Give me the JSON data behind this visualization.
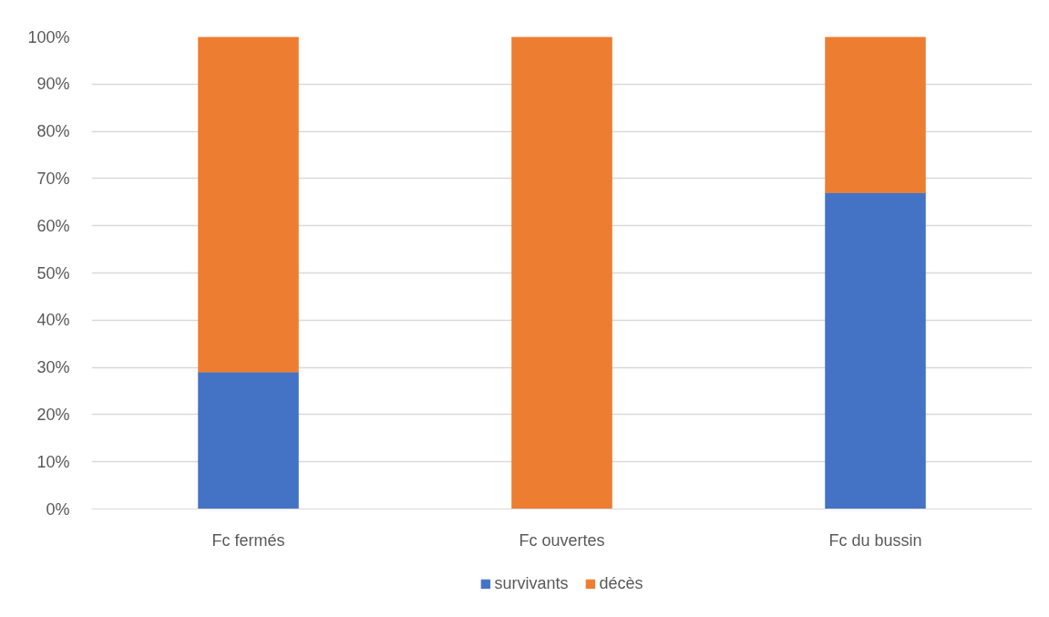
{
  "chart_data": {
    "type": "bar",
    "stacked": true,
    "categories": [
      "Fc fermés",
      "Fc ouvertes",
      "Fc du bussin"
    ],
    "series": [
      {
        "name": "survivants",
        "color": "#4472c4",
        "values": [
          29,
          0,
          67
        ]
      },
      {
        "name": "décès",
        "color": "#ed7d31",
        "values": [
          71,
          100,
          33
        ]
      }
    ],
    "ylim": [
      0,
      100
    ],
    "yticks": [
      {
        "value": 0,
        "label": "0%"
      },
      {
        "value": 10,
        "label": "10%"
      },
      {
        "value": 20,
        "label": "20%"
      },
      {
        "value": 30,
        "label": "30%"
      },
      {
        "value": 40,
        "label": "40%"
      },
      {
        "value": 50,
        "label": "50%"
      },
      {
        "value": 60,
        "label": "60%"
      },
      {
        "value": 70,
        "label": "70%"
      },
      {
        "value": 80,
        "label": "80%"
      },
      {
        "value": 90,
        "label": "90%"
      },
      {
        "value": 100,
        "label": "100%"
      }
    ],
    "grid": "y",
    "legend": "bottom"
  }
}
